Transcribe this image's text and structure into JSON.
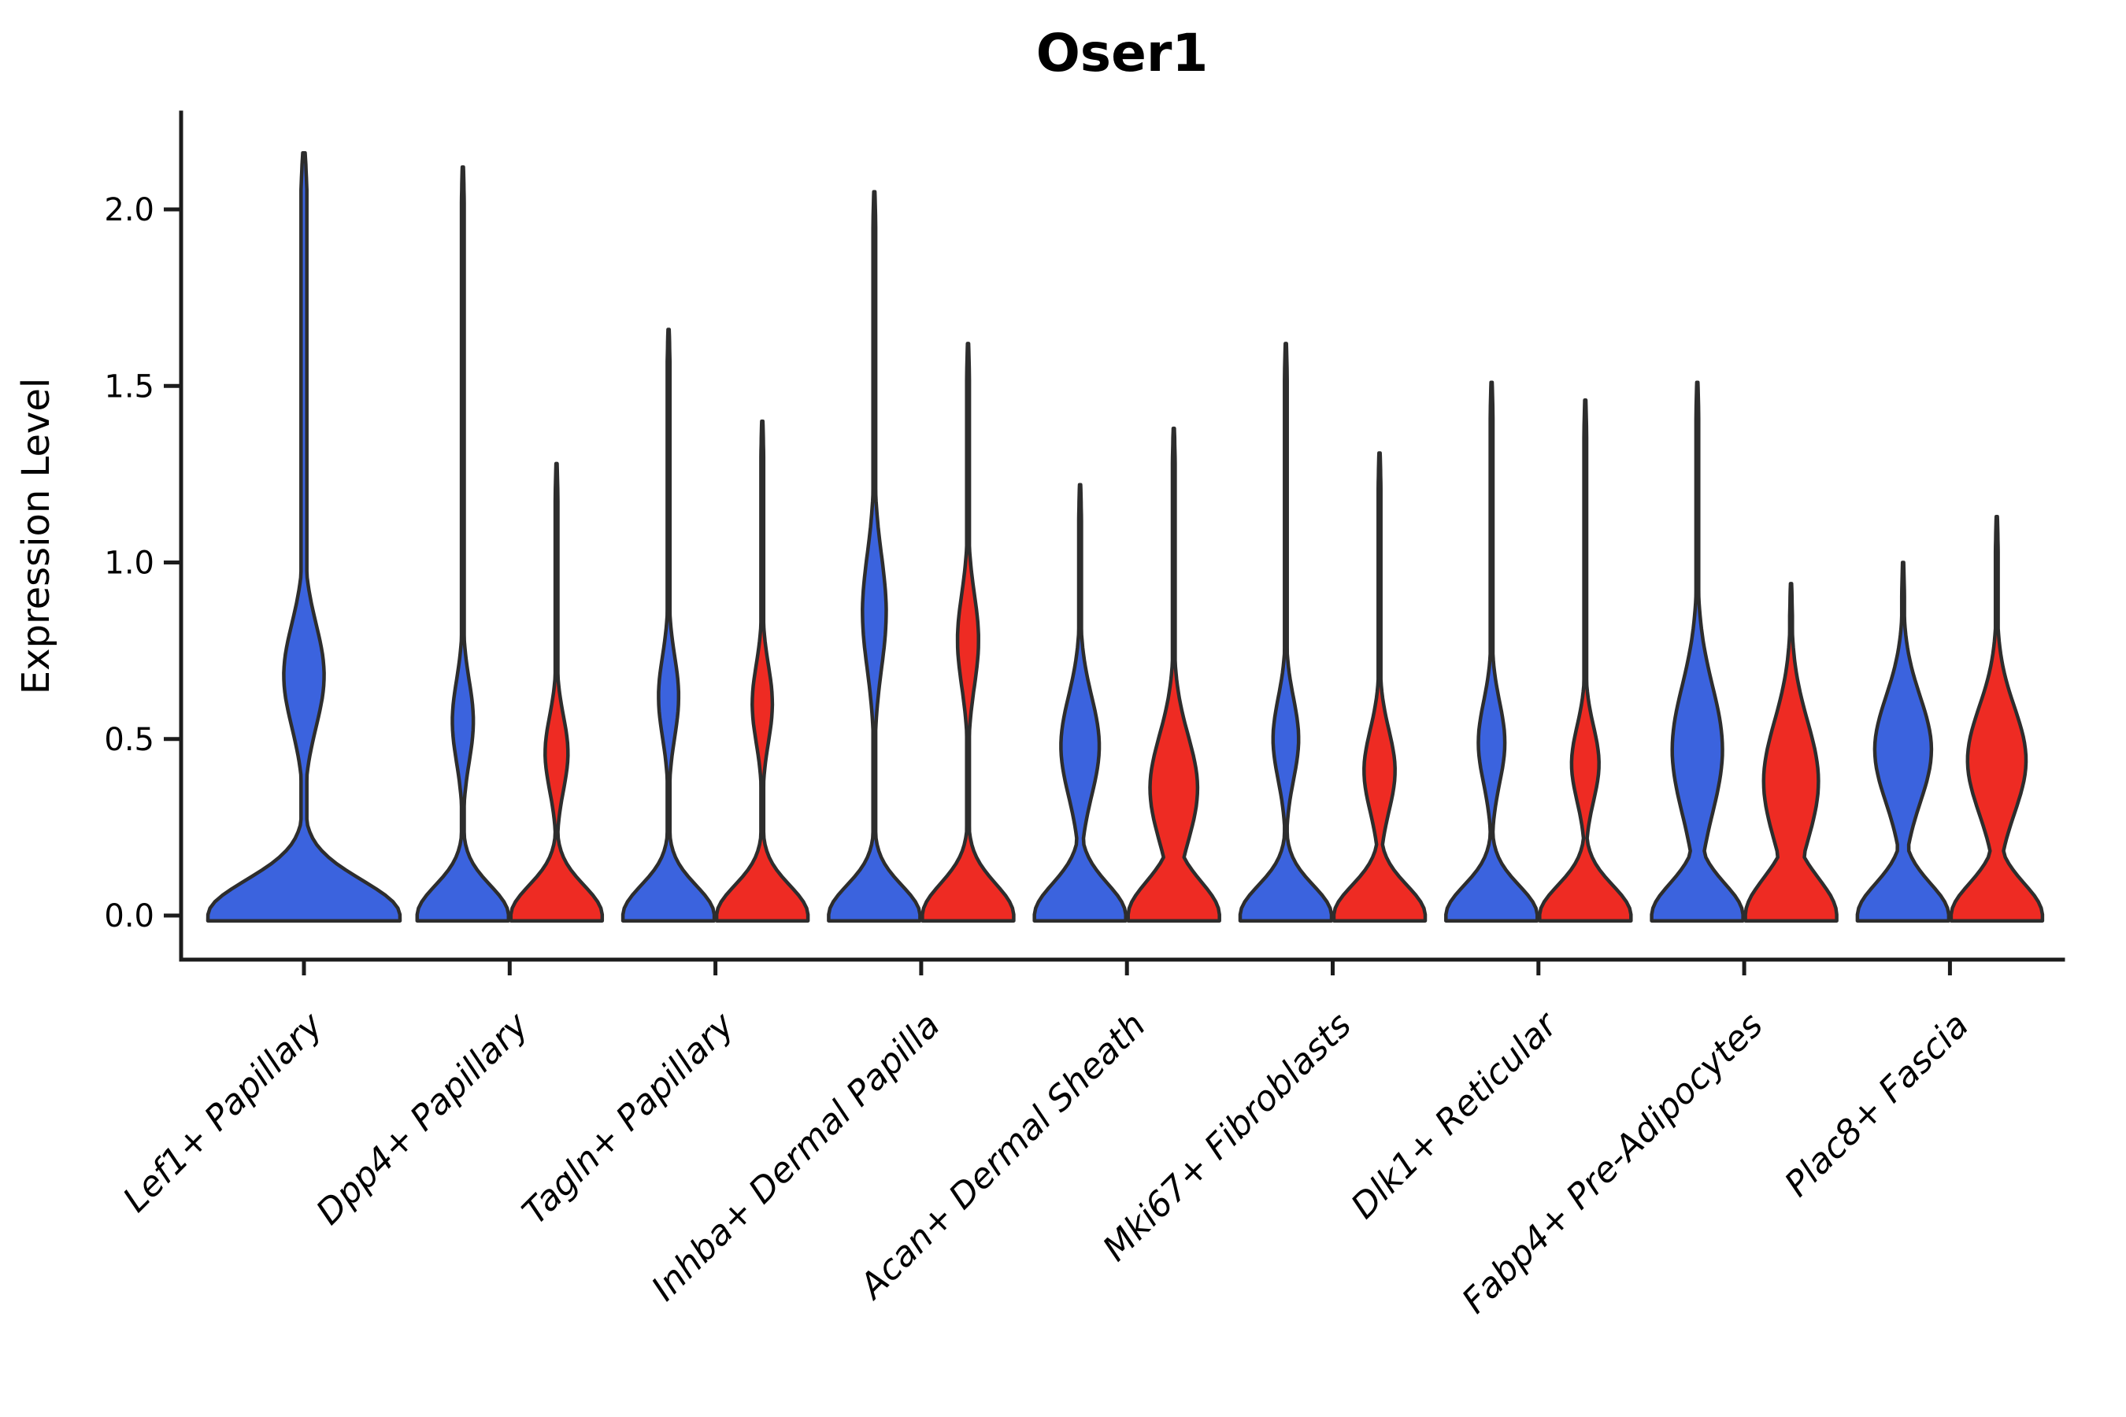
{
  "title": "Oser1",
  "y_axis": {
    "label": "Expression Level",
    "tick_labels": [
      "0.0",
      "0.5",
      "1.0",
      "1.5",
      "2.0"
    ],
    "tick_values": [
      0.0,
      0.5,
      1.0,
      1.5,
      2.0
    ]
  },
  "chart_data": {
    "type": "violin",
    "title": "Oser1",
    "xlabel": "",
    "ylabel": "Expression Level",
    "y_ticks": [
      0.0,
      0.5,
      1.0,
      1.5,
      2.0
    ],
    "y_range_shown": [
      -0.12,
      2.27
    ],
    "grid": false,
    "legend_position": "none",
    "split_violins": true,
    "series_colors": {
      "left": "#3B63DE",
      "right": "#EE2B23"
    },
    "outline_color": "#2D2D2D",
    "axis_color": "#1C1C1C",
    "categories": [
      "Lef1+ Papillary",
      "Dpp4+ Papillary",
      "Tagln+ Papillary",
      "Inhba+ Dermal Papilla",
      "Acan+ Dermal Sheath",
      "Mki67+ Fibroblasts",
      "Dlk1+ Reticular",
      "Fabp4+ Pre-Adipocytes",
      "Plac8+ Fascia"
    ],
    "groups": [
      {
        "category": "Lef1+ Papillary",
        "violins": [
          {
            "side": "left",
            "color": "#3B63DE",
            "width": "full",
            "max_expression": 2.16,
            "zero_mode": {
              "center": 0,
              "sd": 0.1,
              "weight": 1.0
            },
            "bulge_mode": {
              "center": 0.68,
              "sd": 0.145,
              "weight": 0.21
            }
          }
        ]
      },
      {
        "category": "Dpp4+ Papillary",
        "violins": [
          {
            "side": "left",
            "color": "#3B63DE",
            "width": "half",
            "max_expression": 2.12,
            "zero_mode": {
              "center": 0,
              "sd": 0.085,
              "weight": 1.0
            },
            "bulge_mode": {
              "center": 0.55,
              "sd": 0.115,
              "weight": 0.23
            }
          },
          {
            "side": "right",
            "color": "#EE2B23",
            "width": "half",
            "max_expression": 1.28,
            "zero_mode": {
              "center": 0,
              "sd": 0.085,
              "weight": 1.0
            },
            "bulge_mode": {
              "center": 0.46,
              "sd": 0.105,
              "weight": 0.25
            }
          }
        ]
      },
      {
        "category": "Tagln+ Papillary",
        "violins": [
          {
            "side": "left",
            "color": "#3B63DE",
            "width": "half",
            "max_expression": 1.66,
            "zero_mode": {
              "center": 0,
              "sd": 0.085,
              "weight": 1.0
            },
            "bulge_mode": {
              "center": 0.62,
              "sd": 0.115,
              "weight": 0.22
            }
          },
          {
            "side": "right",
            "color": "#EE2B23",
            "width": "half",
            "max_expression": 1.4,
            "zero_mode": {
              "center": 0,
              "sd": 0.085,
              "weight": 1.0
            },
            "bulge_mode": {
              "center": 0.6,
              "sd": 0.11,
              "weight": 0.22
            }
          }
        ]
      },
      {
        "category": "Inhba+ Dermal Papilla",
        "violins": [
          {
            "side": "left",
            "color": "#3B63DE",
            "width": "half",
            "max_expression": 2.05,
            "zero_mode": {
              "center": 0,
              "sd": 0.085,
              "weight": 1.0
            },
            "bulge_mode": {
              "center": 0.86,
              "sd": 0.16,
              "weight": 0.26
            }
          },
          {
            "side": "right",
            "color": "#EE2B23",
            "width": "half",
            "max_expression": 1.62,
            "zero_mode": {
              "center": 0,
              "sd": 0.09,
              "weight": 1.0
            },
            "bulge_mode": {
              "center": 0.78,
              "sd": 0.13,
              "weight": 0.23
            }
          }
        ]
      },
      {
        "category": "Acan+ Dermal Sheath",
        "violins": [
          {
            "side": "left",
            "color": "#3B63DE",
            "width": "half",
            "max_expression": 1.22,
            "zero_mode": {
              "center": 0,
              "sd": 0.09,
              "weight": 1.0
            },
            "bulge_mode": {
              "center": 0.48,
              "sd": 0.14,
              "weight": 0.42
            }
          },
          {
            "side": "right",
            "color": "#EE2B23",
            "width": "half",
            "max_expression": 1.38,
            "zero_mode": {
              "center": 0,
              "sd": 0.095,
              "weight": 1.0
            },
            "bulge_mode": {
              "center": 0.36,
              "sd": 0.15,
              "weight": 0.52
            }
          }
        ]
      },
      {
        "category": "Mki67+ Fibroblasts",
        "violins": [
          {
            "side": "left",
            "color": "#3B63DE",
            "width": "half",
            "max_expression": 1.62,
            "zero_mode": {
              "center": 0,
              "sd": 0.085,
              "weight": 1.0
            },
            "bulge_mode": {
              "center": 0.5,
              "sd": 0.115,
              "weight": 0.28
            }
          },
          {
            "side": "right",
            "color": "#EE2B23",
            "width": "half",
            "max_expression": 1.31,
            "zero_mode": {
              "center": 0,
              "sd": 0.085,
              "weight": 1.0
            },
            "bulge_mode": {
              "center": 0.41,
              "sd": 0.115,
              "weight": 0.34
            }
          }
        ]
      },
      {
        "category": "Dlk1+ Reticular",
        "violins": [
          {
            "side": "left",
            "color": "#3B63DE",
            "width": "half",
            "max_expression": 1.51,
            "zero_mode": {
              "center": 0,
              "sd": 0.085,
              "weight": 1.0
            },
            "bulge_mode": {
              "center": 0.49,
              "sd": 0.115,
              "weight": 0.29
            }
          },
          {
            "side": "right",
            "color": "#EE2B23",
            "width": "half",
            "max_expression": 1.46,
            "zero_mode": {
              "center": 0,
              "sd": 0.085,
              "weight": 1.0
            },
            "bulge_mode": {
              "center": 0.43,
              "sd": 0.105,
              "weight": 0.3
            }
          }
        ]
      },
      {
        "category": "Fabp4+ Pre-Adipocytes",
        "violins": [
          {
            "side": "left",
            "color": "#3B63DE",
            "width": "half",
            "max_expression": 1.51,
            "zero_mode": {
              "center": 0,
              "sd": 0.09,
              "weight": 1.0
            },
            "bulge_mode": {
              "center": 0.47,
              "sd": 0.18,
              "weight": 0.55
            }
          },
          {
            "side": "right",
            "color": "#EE2B23",
            "width": "half",
            "max_expression": 0.94,
            "zero_mode": {
              "center": 0,
              "sd": 0.105,
              "weight": 1.0
            },
            "bulge_mode": {
              "center": 0.38,
              "sd": 0.17,
              "weight": 0.6
            }
          }
        ]
      },
      {
        "category": "Plac8+ Fascia",
        "violins": [
          {
            "side": "left",
            "color": "#3B63DE",
            "width": "half",
            "max_expression": 1.0,
            "zero_mode": {
              "center": 0,
              "sd": 0.09,
              "weight": 1.0
            },
            "bulge_mode": {
              "center": 0.47,
              "sd": 0.15,
              "weight": 0.62
            }
          },
          {
            "side": "right",
            "color": "#EE2B23",
            "width": "half",
            "max_expression": 1.13,
            "zero_mode": {
              "center": 0,
              "sd": 0.09,
              "weight": 1.0
            },
            "bulge_mode": {
              "center": 0.44,
              "sd": 0.15,
              "weight": 0.64
            }
          }
        ]
      }
    ]
  }
}
